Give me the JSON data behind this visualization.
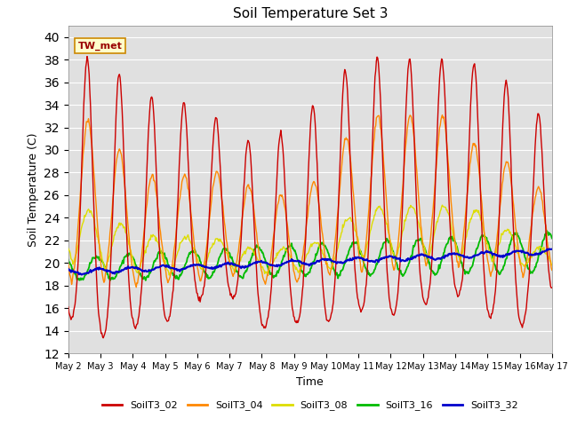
{
  "title": "Soil Temperature Set 3",
  "xlabel": "Time",
  "ylabel": "Soil Temperature (C)",
  "ylim": [
    12,
    41
  ],
  "yticks": [
    12,
    14,
    16,
    18,
    20,
    22,
    24,
    26,
    28,
    30,
    32,
    34,
    36,
    38,
    40
  ],
  "series_colors": {
    "SoilT3_02": "#cc0000",
    "SoilT3_04": "#ff8800",
    "SoilT3_08": "#dddd00",
    "SoilT3_16": "#00bb00",
    "SoilT3_32": "#0000cc"
  },
  "annotation_label": "TW_met",
  "bg_color": "#e0e0e0",
  "n_days": 15,
  "start_day": 2
}
